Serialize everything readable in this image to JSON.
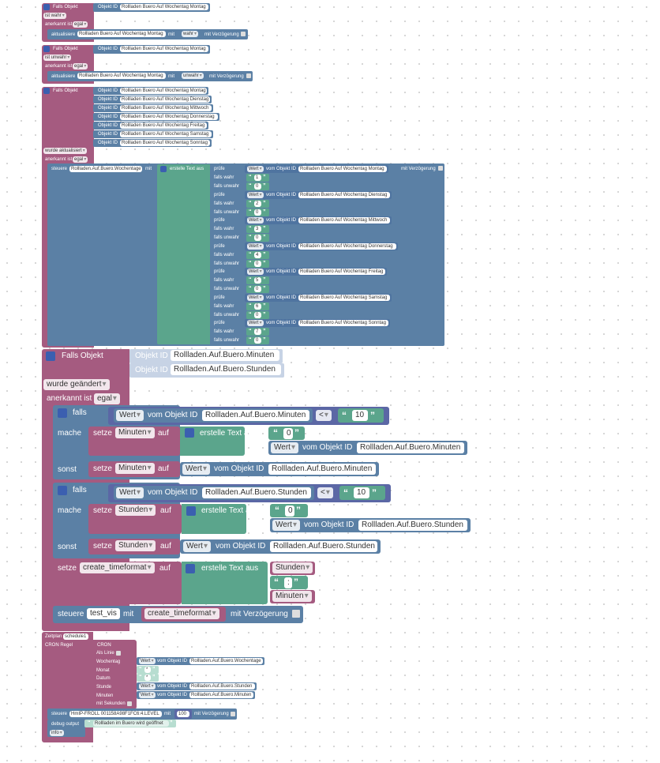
{
  "labels": {
    "falls_objekt": "Falls Objekt",
    "objekt_id": "Objekt ID",
    "ist": "ist",
    "wahr": "wahr",
    "unwahr": "unwahr",
    "anerkannt_ist": "anerkannt ist",
    "egal": "egal",
    "aktualisiere": "aktualisiere",
    "mit": "mit",
    "mit_verzoegerung": "mit Verzögerung",
    "wurde_aktualisiert": "wurde aktualisiert",
    "wurde_geaendert": "wurde geändert",
    "steuere": "steuere",
    "erstelle_text_aus": "erstelle Text aus",
    "pruefe": "prüfe",
    "falls_wahr": "falls wahr",
    "falls_unwahr": "falls unwahr",
    "wert": "Wert",
    "vom_objekt_id": "vom Objekt ID",
    "falls": "falls",
    "mache": "mache",
    "sonst": "sonst",
    "setze": "setze",
    "auf": "auf",
    "lt": "<",
    "zeitplan": "Zeitplan",
    "cron_regel": "CRON Regel",
    "cron": "CRON",
    "als_linie": "Als Linie",
    "wochentag": "Wochentag",
    "monat": "Monat",
    "datum": "Datum",
    "stunde": "Stunde",
    "minuten": "Minuten",
    "mit_sekunden": "mit Sekunden",
    "debug_output": "debug output",
    "info": "info",
    "star": "*"
  },
  "ids": {
    "montag": "Rollladen Buero Auf Wochentag Montag",
    "dienstag": "Rollladen Buero Auf Wochentag Dienstag",
    "mittwoch": "Rollladen Buero Auf Wochentag Mittwoch",
    "donnerstag": "Rollladen Buero Auf Wochentag Donnerstag",
    "freitag": "Rollladen Buero Auf Wochentag Freitag",
    "samstag": "Rollladen Buero Auf Wochentag Samstag",
    "sonntag": "Rollladen Buero Auf Wochentag Sonntag",
    "wochentage": "Rollladen.Auf.Buero.Wochentage",
    "minuten": "Rollladen.Auf.Buero.Minuten",
    "stunden": "Rollladen.Auf.Buero.Stunden",
    "wochentage_cron": "Rollladen.Auf.Buero.Wochentage",
    "hmip": "HmIP-FROLL 001158A98F1FC6:4.LEVEL"
  },
  "vars": {
    "minuten": "Minuten",
    "stunden": "Stunden",
    "create_timeformat": "create_timeformat",
    "test_vis": "test_vis",
    "schedule": "schedule1"
  },
  "values": {
    "d1": "1",
    "d2": "2",
    "d3": "3",
    "d4": "4",
    "d5": "5",
    "d6": "6",
    "d7": "7",
    "zero_small": "0",
    "zero": "0",
    "ten": "10",
    "colon": ":",
    "level": "100",
    "debug_msg": "Rollladen im Buero wird geöffnet"
  }
}
